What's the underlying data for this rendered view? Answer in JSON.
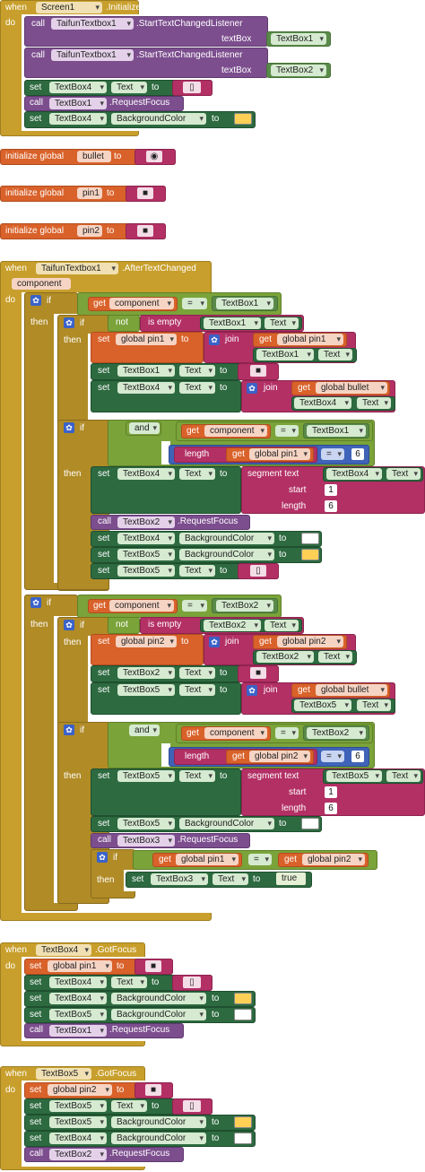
{
  "kw": {
    "when": "when",
    "do": "do",
    "call": "call",
    "set": "set",
    "to": "to",
    "get": "get",
    "if": "if",
    "then": "then",
    "not": "not",
    "is_empty": "is empty",
    "join": "join",
    "and": "and",
    "length": "length",
    "segment_text": "segment text",
    "start": "start",
    "length_arg": "length",
    "textbox_arg": "textBox",
    "init_global": "initialize global",
    "eq": "=",
    "true": "true",
    "quote": "\""
  },
  "components": {
    "screen1": "Screen1",
    "taifun1": "TaifunTextbox1",
    "textbox1": "TextBox1",
    "textbox2": "TextBox2",
    "textbox3": "TextBox3",
    "textbox4": "TextBox4",
    "textbox5": "TextBox5"
  },
  "events": {
    "initialize": ".Initialize",
    "after_text_changed": ".AfterTextChanged",
    "got_focus": ".GotFocus"
  },
  "methods": {
    "start_listener": ".StartTextChangedListener",
    "request_focus": ".RequestFocus"
  },
  "props": {
    "text": "Text",
    "bgcolor": "BackgroundColor"
  },
  "globals": {
    "bullet": "bullet",
    "pin1": "pin1",
    "pin2": "pin2",
    "global_pin1": "global pin1",
    "global_pin2": "global pin2",
    "global_bullet": "global bullet"
  },
  "params": {
    "component": "component"
  },
  "nums": {
    "six": "6",
    "one": "1"
  },
  "strings": {
    "bullet_val": "◉",
    "box_val": "▯",
    "pin_val": "■"
  },
  "colors": {
    "event": "#c89f2c",
    "call": "#7c4e8e",
    "set_property": "#2d6a40",
    "variable": "#d9622a",
    "logic": "#7aa33a",
    "text": "#b33065",
    "math": "#3f63b8",
    "swatch_yellow": "#ffd056",
    "swatch_white": "#ffffff"
  }
}
